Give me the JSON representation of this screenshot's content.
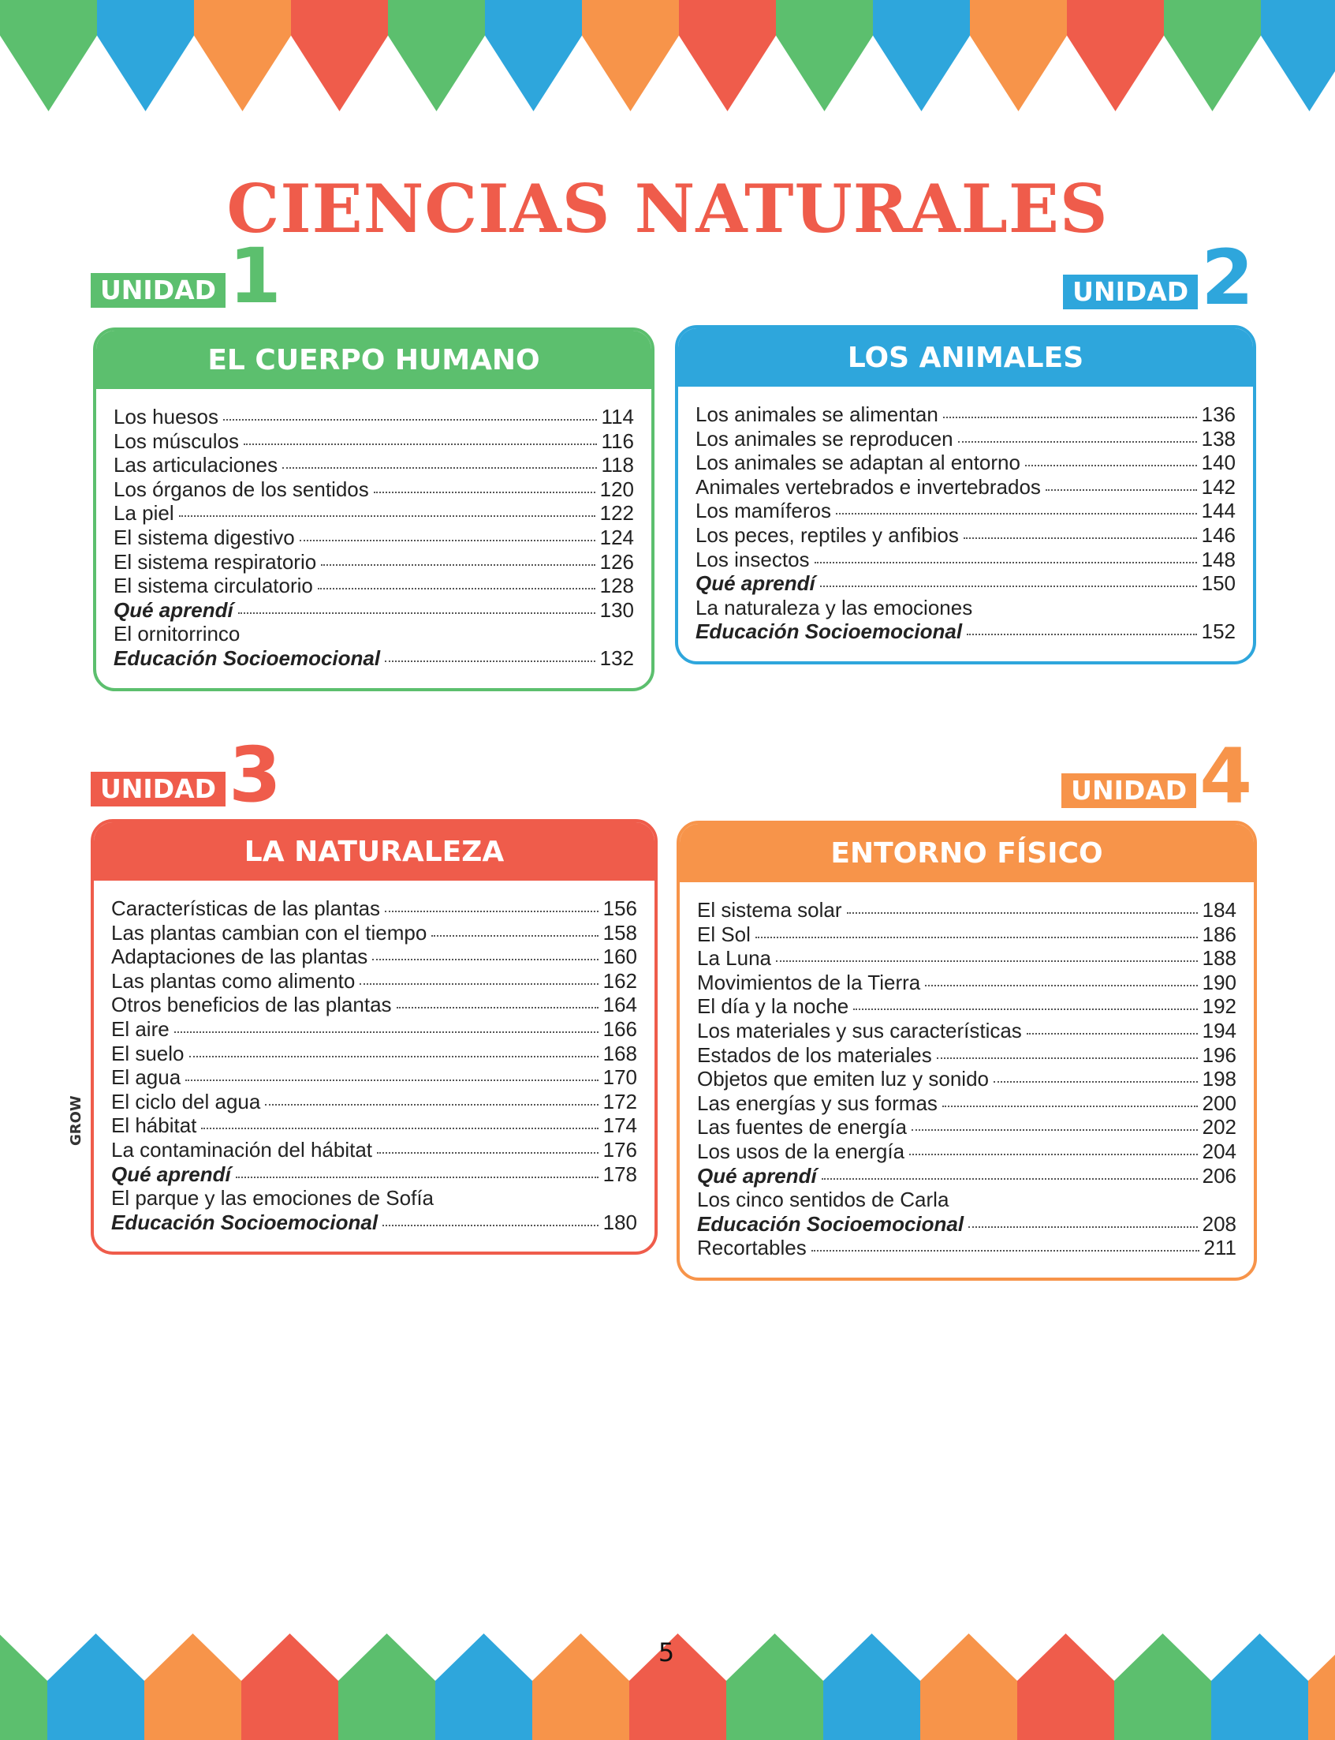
{
  "title": "CIENCIAS NATURALES",
  "units": [
    {
      "label": "UNIDAD",
      "number": 1,
      "heading": "EL CUERPO HUMANO",
      "color": "#5cbf6e",
      "items": [
        {
          "text": "Los huesos",
          "page": 114
        },
        {
          "text": "Los músculos",
          "page": 116
        },
        {
          "text": "Las articulaciones",
          "page": 118
        },
        {
          "text": "Los órganos de los sentidos",
          "page": 120
        },
        {
          "text": "La piel",
          "page": 122
        },
        {
          "text": "El sistema digestivo",
          "page": 124
        },
        {
          "text": "El sistema respiratorio",
          "page": 126
        },
        {
          "text": "El sistema circulatorio",
          "page": 128
        },
        {
          "text": "Qué aprendí",
          "page": 130,
          "emphasis": true
        },
        {
          "text": "El ornitorrinco"
        },
        {
          "text": "Educación Socioemocional",
          "page": 132,
          "emphasis": true
        }
      ]
    },
    {
      "label": "UNIDAD",
      "number": 2,
      "heading": "LOS ANIMALES",
      "color": "#2ea6dc",
      "items": [
        {
          "text": "Los animales se alimentan",
          "page": 136
        },
        {
          "text": "Los animales se reproducen",
          "page": 138
        },
        {
          "text": "Los animales se adaptan al entorno",
          "page": 140
        },
        {
          "text": "Animales vertebrados e invertebrados",
          "page": 142
        },
        {
          "text": "Los mamíferos",
          "page": 144
        },
        {
          "text": "Los peces, reptiles y anfibios",
          "page": 146
        },
        {
          "text": "Los insectos",
          "page": 148
        },
        {
          "text": "Qué aprendí",
          "page": 150,
          "emphasis": true
        },
        {
          "text": "La naturaleza y las emociones"
        },
        {
          "text": "Educación Socioemocional",
          "page": 152,
          "emphasis": true
        }
      ]
    },
    {
      "label": "UNIDAD",
      "number": 3,
      "heading": "LA NATURALEZA",
      "color": "#ef5c4b",
      "items": [
        {
          "text": "Características de las plantas",
          "page": 156
        },
        {
          "text": "Las plantas cambian con el tiempo",
          "page": 158
        },
        {
          "text": "Adaptaciones de las plantas",
          "page": 160
        },
        {
          "text": "Las plantas como alimento",
          "page": 162
        },
        {
          "text": "Otros beneficios de las plantas",
          "page": 164
        },
        {
          "text": "El aire",
          "page": 166
        },
        {
          "text": "El suelo",
          "page": 168
        },
        {
          "text": "El agua",
          "page": 170
        },
        {
          "text": "El ciclo del agua",
          "page": 172
        },
        {
          "text": "El hábitat",
          "page": 174
        },
        {
          "text": "La contaminación del hábitat",
          "page": 176
        },
        {
          "text": "Qué aprendí",
          "page": 178,
          "emphasis": true
        },
        {
          "text": "El parque y las emociones de Sofía"
        },
        {
          "text": "Educación Socioemocional",
          "page": 180,
          "emphasis": true
        }
      ]
    },
    {
      "label": "UNIDAD",
      "number": 4,
      "heading": "ENTORNO FÍSICO",
      "color": "#f7944a",
      "items": [
        {
          "text": "El sistema solar",
          "page": 184
        },
        {
          "text": "El Sol",
          "page": 186
        },
        {
          "text": "La Luna",
          "page": 188
        },
        {
          "text": "Movimientos de la Tierra",
          "page": 190
        },
        {
          "text": "El día y la noche",
          "page": 192
        },
        {
          "text": "Los materiales y sus características",
          "page": 194
        },
        {
          "text": "Estados de los materiales",
          "page": 196
        },
        {
          "text": "Objetos que emiten luz y sonido",
          "page": 198
        },
        {
          "text": "Las energías y sus formas",
          "page": 200
        },
        {
          "text": "Las fuentes de energía",
          "page": 202
        },
        {
          "text": "Los usos de la energía",
          "page": 204
        },
        {
          "text": "Qué aprendí",
          "page": 206,
          "emphasis": true
        },
        {
          "text": "Los cinco sentidos de Carla"
        },
        {
          "text": "Educación Socioemocional",
          "page": 208,
          "emphasis": true
        },
        {
          "text": "Recortables",
          "page": 211
        }
      ]
    }
  ],
  "brand": "GROW",
  "page_number": 5
}
